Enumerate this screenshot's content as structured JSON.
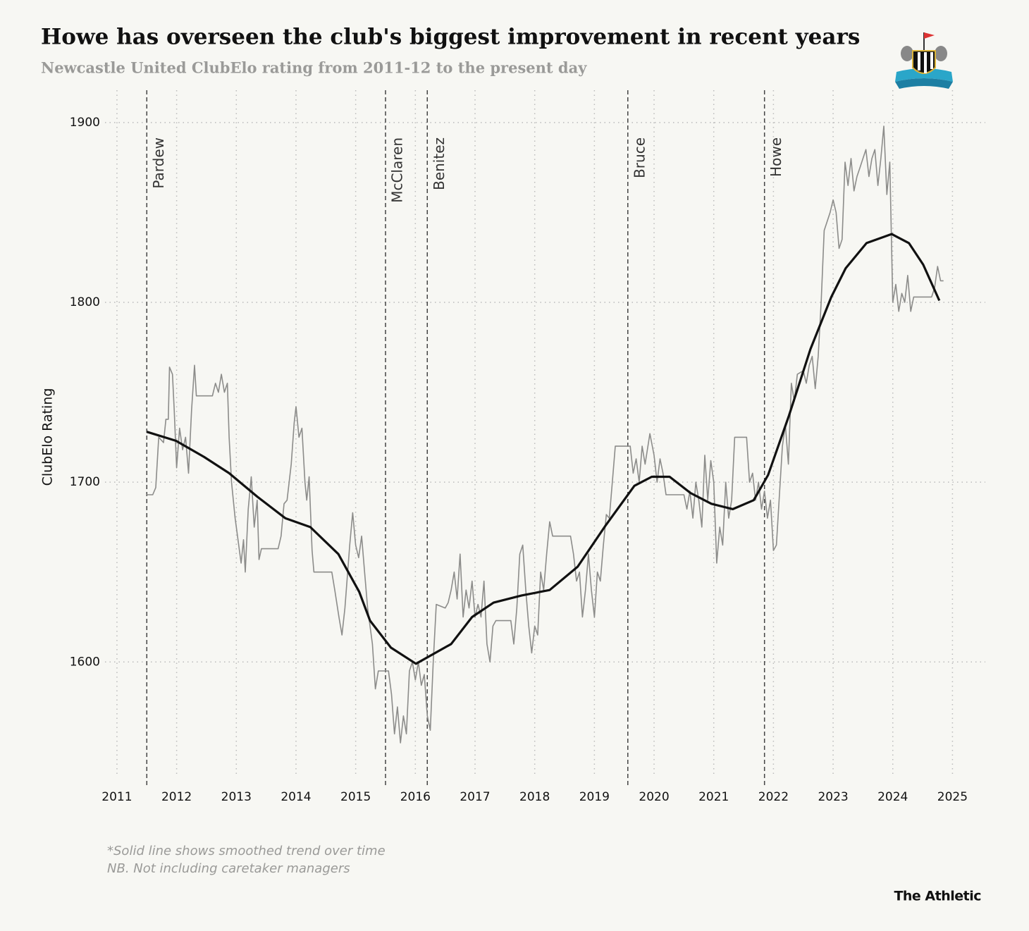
{
  "chart_data": {
    "type": "line",
    "title": "Howe has overseen the club's biggest improvement in recent years",
    "subtitle": "Newcastle United ClubElo rating from 2011-12 to the present day",
    "y_label": "ClubElo Rating",
    "notes": [
      "*Solid line shows smoothed trend over time",
      "NB. Not including caretaker managers"
    ],
    "source": "The Athletic",
    "xlim": [
      2010.8,
      2025.55
    ],
    "ylim": [
      1537,
      1918
    ],
    "xticks": [
      2011,
      2012,
      2013,
      2014,
      2015,
      2016,
      2017,
      2018,
      2019,
      2020,
      2021,
      2022,
      2023,
      2024,
      2025
    ],
    "yticks": [
      1600,
      1700,
      1800,
      1900
    ],
    "grid": true,
    "managers": [
      {
        "label": "Pardew",
        "x": 2011.5
      },
      {
        "label": "McClaren",
        "x": 2015.5
      },
      {
        "label": "Benitez",
        "x": 2016.2
      },
      {
        "label": "Bruce",
        "x": 2019.56
      },
      {
        "label": "Howe",
        "x": 2021.85
      }
    ],
    "series": [
      {
        "color": "#8c8c8a",
        "width": 1.6,
        "x": [
          2011.5,
          2011.6,
          2011.65,
          2011.7,
          2011.78,
          2011.82,
          2011.86,
          2011.88,
          2011.93,
          2011.96,
          2012.0,
          2012.05,
          2012.1,
          2012.15,
          2012.2,
          2012.25,
          2012.3,
          2012.33,
          2012.6,
          2012.65,
          2012.7,
          2012.75,
          2012.8,
          2012.85,
          2012.88,
          2012.92,
          2012.98,
          2013.02,
          2013.08,
          2013.12,
          2013.15,
          2013.2,
          2013.25,
          2013.3,
          2013.35,
          2013.38,
          2013.42,
          2013.7,
          2013.75,
          2013.8,
          2013.85,
          2013.92,
          2013.97,
          2014.0,
          2014.05,
          2014.1,
          2014.15,
          2014.18,
          2014.22,
          2014.27,
          2014.3,
          2014.6,
          2014.65,
          2014.72,
          2014.77,
          2014.82,
          2014.9,
          2014.95,
          2015.0,
          2015.05,
          2015.1,
          2015.15,
          2015.2,
          2015.28,
          2015.33,
          2015.38,
          2015.55,
          2015.6,
          2015.65,
          2015.7,
          2015.75,
          2015.8,
          2015.85,
          2015.9,
          2015.95,
          2016.0,
          2016.05,
          2016.1,
          2016.15,
          2016.2,
          2016.25,
          2016.3,
          2016.35,
          2016.5,
          2016.55,
          2016.6,
          2016.65,
          2016.7,
          2016.75,
          2016.8,
          2016.85,
          2016.9,
          2016.95,
          2017.0,
          2017.05,
          2017.1,
          2017.15,
          2017.2,
          2017.25,
          2017.3,
          2017.35,
          2017.6,
          2017.65,
          2017.7,
          2017.75,
          2017.8,
          2017.85,
          2017.9,
          2017.95,
          2018.0,
          2018.05,
          2018.1,
          2018.15,
          2018.2,
          2018.25,
          2018.3,
          2018.6,
          2018.65,
          2018.7,
          2018.75,
          2018.8,
          2018.85,
          2018.9,
          2018.95,
          2019.0,
          2019.05,
          2019.1,
          2019.15,
          2019.2,
          2019.25,
          2019.3,
          2019.35,
          2019.6,
          2019.65,
          2019.7,
          2019.75,
          2019.8,
          2019.85,
          2019.93,
          2020.0,
          2020.05,
          2020.1,
          2020.15,
          2020.2,
          2020.5,
          2020.55,
          2020.6,
          2020.65,
          2020.7,
          2020.75,
          2020.8,
          2020.85,
          2020.9,
          2020.95,
          2021.0,
          2021.05,
          2021.1,
          2021.15,
          2021.2,
          2021.25,
          2021.3,
          2021.35,
          2021.55,
          2021.6,
          2021.65,
          2021.7,
          2021.75,
          2021.8,
          2021.85,
          2021.9,
          2021.95,
          2022.0,
          2022.05,
          2022.1,
          2022.15,
          2022.2,
          2022.25,
          2022.3,
          2022.35,
          2022.4,
          2022.5,
          2022.55,
          2022.6,
          2022.65,
          2022.7,
          2022.75,
          2022.8,
          2022.85,
          2022.9,
          2022.95,
          2023.0,
          2023.05,
          2023.1,
          2023.15,
          2023.2,
          2023.25,
          2023.3,
          2023.35,
          2023.4,
          2023.45,
          2023.5,
          2023.55,
          2023.6,
          2023.65,
          2023.7,
          2023.75,
          2023.8,
          2023.85,
          2023.9,
          2023.95,
          2024.0,
          2024.05,
          2024.1,
          2024.15,
          2024.2,
          2024.25,
          2024.3,
          2024.35,
          2024.65,
          2024.7,
          2024.75,
          2024.8,
          2024.85
        ],
        "values": [
          1693,
          1693,
          1697,
          1725,
          1722,
          1735,
          1735,
          1764,
          1760,
          1740,
          1708,
          1730,
          1718,
          1725,
          1705,
          1740,
          1765,
          1748,
          1748,
          1755,
          1750,
          1760,
          1750,
          1755,
          1725,
          1700,
          1680,
          1670,
          1655,
          1668,
          1650,
          1685,
          1703,
          1675,
          1690,
          1657,
          1663,
          1663,
          1670,
          1688,
          1690,
          1710,
          1733,
          1742,
          1725,
          1730,
          1700,
          1690,
          1703,
          1662,
          1650,
          1650,
          1640,
          1625,
          1615,
          1630,
          1665,
          1683,
          1665,
          1658,
          1670,
          1650,
          1630,
          1610,
          1585,
          1595,
          1595,
          1582,
          1560,
          1575,
          1555,
          1570,
          1560,
          1595,
          1600,
          1590,
          1600,
          1587,
          1593,
          1570,
          1562,
          1600,
          1632,
          1630,
          1633,
          1640,
          1650,
          1635,
          1660,
          1625,
          1640,
          1630,
          1645,
          1625,
          1632,
          1625,
          1645,
          1610,
          1600,
          1620,
          1623,
          1623,
          1610,
          1630,
          1660,
          1665,
          1640,
          1620,
          1605,
          1620,
          1615,
          1650,
          1640,
          1660,
          1678,
          1670,
          1670,
          1660,
          1645,
          1650,
          1625,
          1640,
          1660,
          1640,
          1625,
          1650,
          1645,
          1665,
          1682,
          1680,
          1700,
          1720,
          1720,
          1705,
          1713,
          1700,
          1720,
          1710,
          1727,
          1715,
          1700,
          1713,
          1705,
          1693,
          1693,
          1685,
          1695,
          1680,
          1700,
          1690,
          1675,
          1715,
          1690,
          1712,
          1700,
          1655,
          1675,
          1665,
          1700,
          1680,
          1690,
          1725,
          1725,
          1700,
          1705,
          1690,
          1700,
          1685,
          1695,
          1680,
          1690,
          1662,
          1665,
          1693,
          1720,
          1732,
          1710,
          1755,
          1745,
          1760,
          1762,
          1755,
          1765,
          1770,
          1752,
          1770,
          1800,
          1840,
          1845,
          1850,
          1857,
          1850,
          1830,
          1835,
          1878,
          1865,
          1880,
          1862,
          1870,
          1875,
          1880,
          1885,
          1870,
          1880,
          1885,
          1865,
          1880,
          1898,
          1860,
          1878,
          1800,
          1810,
          1795,
          1805,
          1800,
          1815,
          1795,
          1803,
          1803,
          1808,
          1820,
          1812,
          1812
        ]
      },
      {
        "color": "#111111",
        "width": 3.2,
        "x": [
          2011.5,
          2011.99,
          2012.46,
          2012.88,
          2013.35,
          2013.82,
          2014.24,
          2014.71,
          2015.06,
          2015.24,
          2015.59,
          2016.01,
          2016.6,
          2016.95,
          2017.31,
          2017.78,
          2018.25,
          2018.72,
          2019.19,
          2019.67,
          2019.96,
          2020.26,
          2020.61,
          2020.96,
          2021.32,
          2021.67,
          2021.91,
          2022.26,
          2022.62,
          2022.97,
          2023.21,
          2023.56,
          2023.98,
          2024.27,
          2024.51,
          2024.78
        ],
        "values": [
          1728,
          1723,
          1714,
          1705,
          1692,
          1680,
          1675,
          1660,
          1639,
          1623,
          1608,
          1599,
          1610,
          1625,
          1633,
          1637,
          1640,
          1653,
          1676,
          1698,
          1703,
          1703,
          1694,
          1688,
          1685,
          1690,
          1704,
          1737,
          1774,
          1803,
          1819,
          1833,
          1838,
          1833,
          1821,
          1801
        ]
      }
    ]
  }
}
